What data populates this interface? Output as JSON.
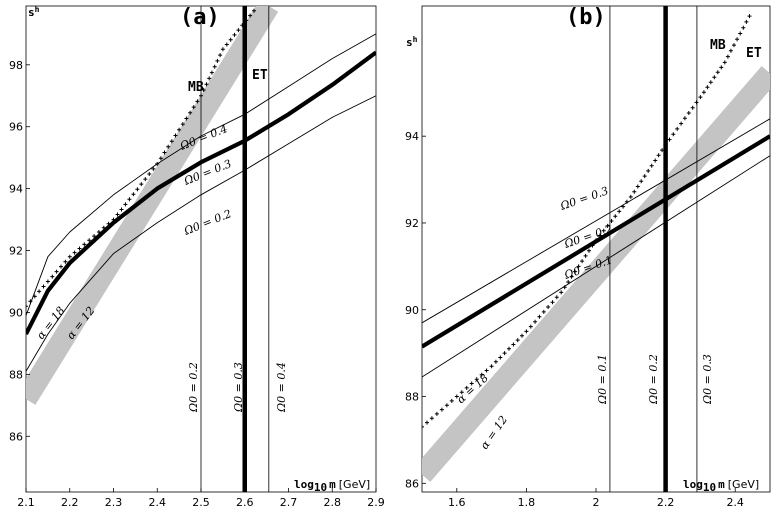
{
  "chart_data": [
    {
      "panel_label": "(a)",
      "type": "line",
      "ylabel": "s",
      "ylabel_sup": "h",
      "xlabel": "log",
      "xlabel_sub": "10",
      "xlabel_var": "m",
      "xlabel_unit": "[GeV]",
      "xlim": [
        2.1,
        2.9
      ],
      "ylim": [
        84.2,
        99.9
      ],
      "xticks": [
        2.1,
        2.2,
        2.3,
        2.4,
        2.5,
        2.6,
        2.7,
        2.8,
        2.9
      ],
      "xtick_labels": [
        "2.1",
        "2.2",
        "2.3",
        "2.4",
        "2.5",
        "2.6",
        "2.7",
        "2.8",
        "2.9"
      ],
      "yticks": [
        86,
        88,
        90,
        92,
        94,
        96,
        98
      ],
      "ytick_labels": [
        "86",
        "88",
        "90",
        "92",
        "94",
        "96",
        "98"
      ],
      "series": [
        {
          "name": "Omega_0 = 0.3 (thick)",
          "style": "thick",
          "x": [
            2.1,
            2.15,
            2.2,
            2.3,
            2.4,
            2.5,
            2.6,
            2.7,
            2.8,
            2.9
          ],
          "y": [
            89.3,
            90.7,
            91.6,
            92.9,
            94.0,
            94.85,
            95.55,
            96.4,
            97.35,
            98.4
          ]
        },
        {
          "name": "Omega_0 = 0.4",
          "style": "thin",
          "x": [
            2.1,
            2.15,
            2.2,
            2.3,
            2.4,
            2.5,
            2.6,
            2.7,
            2.8,
            2.9
          ],
          "y": [
            89.9,
            91.8,
            92.6,
            93.8,
            94.8,
            95.7,
            96.4,
            97.3,
            98.2,
            99.0
          ]
        },
        {
          "name": "Omega_0 = 0.2",
          "style": "thin",
          "x": [
            2.1,
            2.15,
            2.2,
            2.3,
            2.4,
            2.5,
            2.6,
            2.7,
            2.8,
            2.9
          ],
          "y": [
            88.1,
            89.3,
            90.3,
            91.9,
            92.9,
            93.8,
            94.6,
            95.45,
            96.3,
            97.0
          ]
        },
        {
          "name": "MB",
          "style": "crosses",
          "x": [
            2.1,
            2.2,
            2.3,
            2.4,
            2.5,
            2.55,
            2.63
          ],
          "y": [
            90.2,
            91.8,
            93.0,
            94.8,
            97.0,
            98.5,
            99.9
          ]
        },
        {
          "name": "ET band",
          "style": "band",
          "x": [
            2.1,
            2.65
          ],
          "y_low": [
            86.6,
            99.9
          ],
          "y_high": [
            87.8,
            99.9
          ],
          "x_high": [
            2.1,
            2.66
          ]
        },
        {
          "name": "Omega_0 = 0.3 (vertical)",
          "style": "vthick",
          "x_value": 2.6
        },
        {
          "name": "Omega_0 = 0.2 (vertical)",
          "style": "vthin",
          "x_value": 2.5
        },
        {
          "name": "Omega_0 = 0.4 (vertical)",
          "style": "vthin",
          "x_value": 2.655
        }
      ],
      "annotations": [
        {
          "text": "MB",
          "kind": "marker"
        },
        {
          "text": "ET",
          "kind": "marker"
        },
        {
          "text": "Ω0 = 0.4",
          "kind": "curve"
        },
        {
          "text": "Ω0 = 0.3",
          "kind": "curve"
        },
        {
          "text": "Ω0 = 0.2",
          "kind": "curve"
        },
        {
          "text": "α = 18",
          "kind": "curve"
        },
        {
          "text": "α = 12",
          "kind": "curve"
        },
        {
          "text": "Ω0 = 0.2",
          "kind": "vertical"
        },
        {
          "text": "Ω0 = 0.3",
          "kind": "vertical"
        },
        {
          "text": "Ω0 = 0.4",
          "kind": "vertical"
        }
      ]
    },
    {
      "panel_label": "(b)",
      "type": "line",
      "ylabel": "s",
      "ylabel_sup": "h",
      "xlabel": "log",
      "xlabel_sub": "10",
      "xlabel_var": "m",
      "xlabel_unit": "[GeV]",
      "xlim": [
        1.5,
        2.5
      ],
      "ylim": [
        85.8,
        97.0
      ],
      "xticks": [
        1.6,
        1.8,
        2.0,
        2.2,
        2.4
      ],
      "xtick_labels": [
        "1.6",
        "1.8",
        "2",
        "2.2",
        "2.4"
      ],
      "yticks": [
        86,
        88,
        90,
        92,
        94
      ],
      "ytick_labels": [
        "86",
        "88",
        "90",
        "92",
        "94"
      ],
      "series": [
        {
          "name": "Omega_0 = 0.2 (thick)",
          "style": "thick",
          "x": [
            1.5,
            2.5
          ],
          "y": [
            89.15,
            94.0
          ]
        },
        {
          "name": "Omega_0 = 0.3",
          "style": "thin",
          "x": [
            1.5,
            2.5
          ],
          "y": [
            89.7,
            94.4
          ]
        },
        {
          "name": "Omega_0 = 0.1",
          "style": "thin",
          "x": [
            1.5,
            2.5
          ],
          "y": [
            88.45,
            93.55
          ]
        },
        {
          "name": "MB",
          "style": "crosses",
          "x": [
            1.5,
            1.6,
            1.7,
            1.8,
            1.9,
            2.0,
            2.1,
            2.2,
            2.3,
            2.37,
            2.45
          ],
          "y": [
            87.3,
            88.0,
            88.7,
            89.5,
            90.4,
            91.6,
            92.6,
            93.8,
            94.9,
            95.7,
            96.9
          ]
        },
        {
          "name": "ET band",
          "style": "band",
          "x": [
            1.5,
            2.5
          ],
          "y_low": [
            85.8,
            95.2
          ],
          "y_high": [
            86.6,
            95.7
          ]
        },
        {
          "name": "Omega_0 = 0.2 (vertical)",
          "style": "vthick",
          "x_value": 2.2
        },
        {
          "name": "Omega_0 = 0.1 (vertical)",
          "style": "vthin",
          "x_value": 2.04
        },
        {
          "name": "Omega_0 = 0.3 (vertical)",
          "style": "vthin",
          "x_value": 2.29
        }
      ],
      "annotations": [
        {
          "text": "MB",
          "kind": "marker"
        },
        {
          "text": "ET",
          "kind": "marker"
        },
        {
          "text": "Ω0 = 0.3",
          "kind": "curve"
        },
        {
          "text": "Ω0 = 0.2",
          "kind": "curve"
        },
        {
          "text": "Ω0 = 0.1",
          "kind": "curve"
        },
        {
          "text": "α = 18",
          "kind": "curve"
        },
        {
          "text": "α = 12",
          "kind": "curve"
        },
        {
          "text": "Ω0 = 0.1",
          "kind": "vertical"
        },
        {
          "text": "Ω0 = 0.2",
          "kind": "vertical"
        },
        {
          "text": "Ω0 = 0.3",
          "kind": "vertical"
        }
      ]
    }
  ]
}
